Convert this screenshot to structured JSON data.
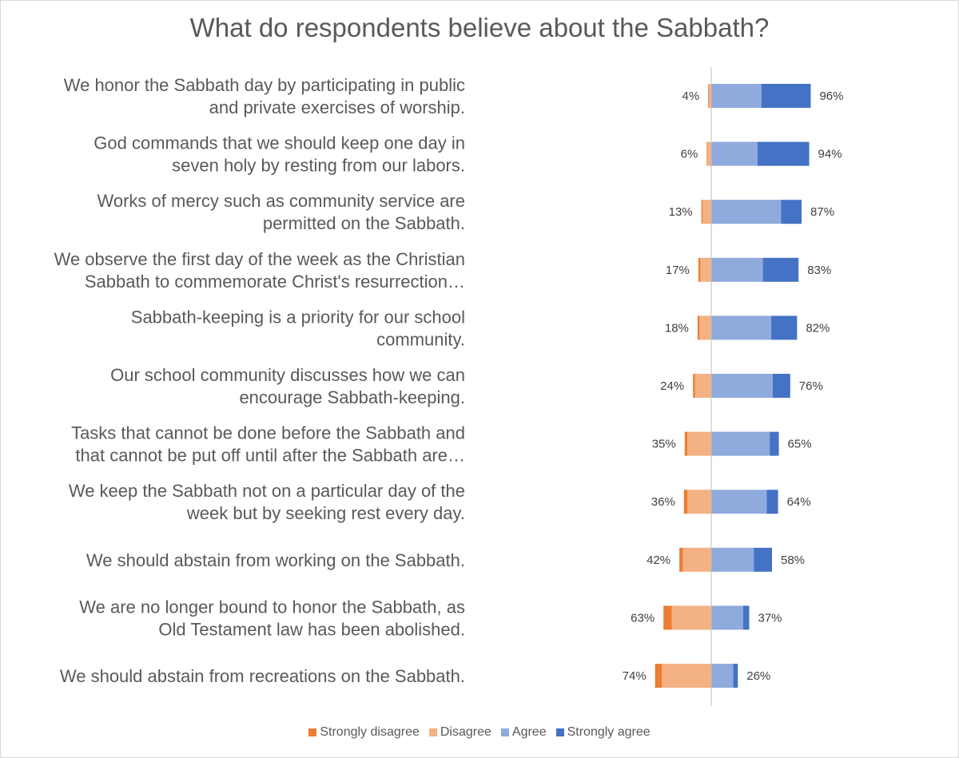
{
  "chart_data": {
    "type": "bar",
    "orientation": "horizontal-diverging-stacked",
    "title": "What do respondents believe about the Sabbath?",
    "categories": [
      [
        "We honor the Sabbath day by participating in public",
        "and private exercises of worship."
      ],
      [
        "God commands that we should keep one day in",
        "seven holy by resting from our labors."
      ],
      [
        "Works of mercy such as community service are",
        "permitted on the Sabbath."
      ],
      [
        "We observe the first day of the week as the Christian",
        "Sabbath to commemorate Christ's resurrection…"
      ],
      [
        "Sabbath-keeping is a priority for our school",
        "community."
      ],
      [
        "Our school community discusses how we can",
        "encourage Sabbath-keeping."
      ],
      [
        "Tasks that cannot be done before the Sabbath and",
        "that cannot be put off until after the Sabbath are…"
      ],
      [
        "We keep the Sabbath not on a particular day of the",
        "week but by seeking rest every day."
      ],
      [
        "We should abstain from working on the Sabbath."
      ],
      [
        "We are no longer bound to honor the Sabbath, as",
        "Old Testament law has been abolished."
      ],
      [
        "We should abstain from recreations on the Sabbath."
      ]
    ],
    "series": [
      {
        "name": "Strongly disagree",
        "color": "#ED7D31",
        "side": "negative",
        "values": [
          1,
          1,
          1.5,
          2.5,
          2.5,
          2.5,
          3.5,
          4.5,
          4.5,
          11,
          9
        ]
      },
      {
        "name": "Disagree",
        "color": "#F4B183",
        "side": "negative",
        "values": [
          3,
          5,
          11.5,
          14.5,
          15.5,
          21.5,
          31.5,
          31.5,
          37.5,
          52,
          65
        ]
      },
      {
        "name": "Agree",
        "color": "#8FAADC",
        "side": "positive",
        "values": [
          66,
          61,
          92,
          68,
          79,
          81,
          77,
          73,
          56,
          42,
          29
        ]
      },
      {
        "name": "Strongly agree",
        "color": "#4472C4",
        "side": "positive",
        "values": [
          65,
          68,
          27,
          47,
          34,
          23,
          12,
          15,
          24,
          8,
          6
        ]
      }
    ],
    "disagree_labels": [
      "4%",
      "6%",
      "13%",
      "17%",
      "18%",
      "24%",
      "35%",
      "36%",
      "42%",
      "63%",
      "74%"
    ],
    "agree_labels": [
      "96%",
      "94%",
      "87%",
      "83%",
      "82%",
      "76%",
      "65%",
      "64%",
      "58%",
      "37%",
      "26%"
    ],
    "axis_center": 0,
    "grid": false,
    "legend_position": "bottom"
  }
}
